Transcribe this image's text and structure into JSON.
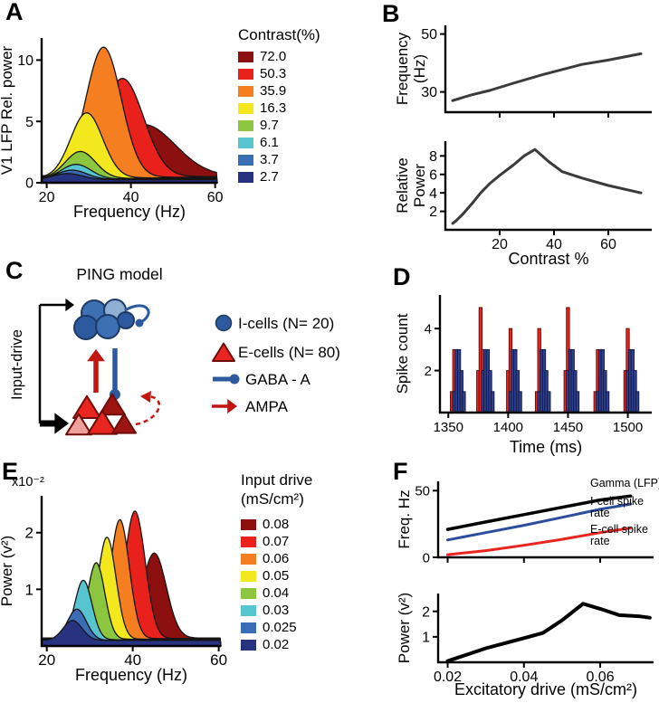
{
  "panels": {
    "A": {
      "label": "A"
    },
    "B": {
      "label": "B"
    },
    "C": {
      "label": "C",
      "title": "PING model",
      "input_label": "Input-drive",
      "colors": {
        "i_cells": "#3d6fb4",
        "i_cells_light": "#8fb0d4",
        "i_cells_dark": "#2d5a9e",
        "i_stroke": "#1d3a66",
        "e_cells": "#e8251f",
        "e_cells_light": "#efa09a",
        "e_cells_dark": "#9e1410",
        "e_stroke": "#6f0c07",
        "ampa_red": "#c2170f",
        "black": "#000000"
      },
      "legend": [
        {
          "symbol": "i-cell-circle",
          "text": "I-cells  (N= 20)"
        },
        {
          "symbol": "e-cell-triangle",
          "text": "E-cells (N= 80)"
        },
        {
          "symbol": "gaba-a-synapse",
          "text": "GABA - A"
        },
        {
          "symbol": "ampa-arrow",
          "text": "AMPA"
        }
      ]
    },
    "D": {
      "label": "D"
    },
    "E": {
      "label": "E"
    },
    "F": {
      "label": "F"
    }
  },
  "chart_data": [
    {
      "id": "A",
      "type": "area",
      "panel": "A",
      "xlabel": "Frequency (Hz)",
      "ylabel": "V1 LFP Rel. power",
      "xlim": [
        18.8,
        60.5
      ],
      "ylim": [
        0,
        11.8
      ],
      "xticks": [
        20,
        40,
        60
      ],
      "yticks": [
        0,
        5,
        10
      ],
      "legend_title": "Contrast(%)",
      "series": [
        {
          "name": "72.0",
          "color": "#8c1010",
          "peak_hz": 43,
          "peak_power": 4.2,
          "width_hz": 7.5,
          "base": 0.55
        },
        {
          "name": "50.3",
          "color": "#e8211d",
          "peak_hz": 38,
          "peak_power": 8.0,
          "width_hz": 5.0,
          "base": 0.5
        },
        {
          "name": "35.9",
          "color": "#f57e20",
          "peak_hz": 33.5,
          "peak_power": 10.6,
          "width_hz": 4.2,
          "base": 0.45
        },
        {
          "name": "16.3",
          "color": "#f3e71d",
          "peak_hz": 29.5,
          "peak_power": 5.3,
          "width_hz": 3.8,
          "base": 0.4
        },
        {
          "name": "9.7",
          "color": "#8cc63f",
          "peak_hz": 28,
          "peak_power": 2.2,
          "width_hz": 3.6,
          "base": 0.35
        },
        {
          "name": "6.1",
          "color": "#56c5d0",
          "peak_hz": 27,
          "peak_power": 1.2,
          "width_hz": 3.5,
          "base": 0.3
        },
        {
          "name": "3.7",
          "color": "#3a6db5",
          "peak_hz": 26,
          "peak_power": 0.75,
          "width_hz": 3.5,
          "base": 0.28
        },
        {
          "name": "2.7",
          "color": "#27337e",
          "peak_hz": 25,
          "peak_power": 0.5,
          "width_hz": 3.5,
          "base": 0.25
        }
      ]
    },
    {
      "id": "B_top",
      "type": "line",
      "panel": "B",
      "ylabel_lines": [
        "Frequency",
        "(Hz)"
      ],
      "xlim": [
        0,
        76
      ],
      "ylim": [
        23,
        53
      ],
      "xticks": [
        20,
        40,
        60
      ],
      "yticks": [
        30,
        50
      ],
      "show_xtick_labels": false,
      "series": [
        {
          "name": "peak gamma frequency",
          "color": "#3b3b3b",
          "width": 3,
          "x": [
            2.7,
            6.1,
            9.7,
            16.3,
            25,
            35.9,
            50.3,
            60,
            72
          ],
          "y": [
            27,
            28,
            29,
            30.5,
            33,
            36,
            39.5,
            41,
            43.2
          ]
        }
      ]
    },
    {
      "id": "B_bottom",
      "type": "line",
      "panel": "B",
      "xlabel": "Contrast %",
      "ylabel_lines": [
        "Relative",
        "Power"
      ],
      "xlim": [
        0,
        76
      ],
      "ylim": [
        0,
        9.6
      ],
      "xticks": [
        20,
        40,
        60
      ],
      "yticks": [
        2,
        4,
        6,
        8
      ],
      "series": [
        {
          "name": "relative power",
          "color": "#3b3b3b",
          "width": 3,
          "x": [
            2.7,
            4,
            6.1,
            9.7,
            13,
            16.3,
            20,
            25,
            29,
            33,
            38,
            43,
            50.3,
            60,
            72
          ],
          "y": [
            0.7,
            1.0,
            1.6,
            2.8,
            4.0,
            5.0,
            5.9,
            7.0,
            8.0,
            8.7,
            7.4,
            6.3,
            5.6,
            4.8,
            4.0
          ]
        }
      ]
    },
    {
      "id": "D",
      "type": "bar",
      "panel": "D",
      "xlabel": "Time (ms)",
      "ylabel": "Spike count",
      "xlim": [
        1343,
        1520
      ],
      "ylim": [
        0,
        5.6
      ],
      "xticks": [
        1350,
        1400,
        1450,
        1500
      ],
      "yticks": [
        2,
        4
      ],
      "bar_width_ms": 2.6,
      "series": [
        {
          "name": "E-cells",
          "color": "#e8251f",
          "edge": "#5a0b08",
          "bars": [
            [
              1353,
              1
            ],
            [
              1355,
              3
            ],
            [
              1357,
              2
            ],
            [
              1375,
              2
            ],
            [
              1377,
              5
            ],
            [
              1379,
              3
            ],
            [
              1381,
              1
            ],
            [
              1400,
              2
            ],
            [
              1402,
              4
            ],
            [
              1404,
              2
            ],
            [
              1424,
              1
            ],
            [
              1426,
              4
            ],
            [
              1428,
              2
            ],
            [
              1448,
              2
            ],
            [
              1450,
              5
            ],
            [
              1452,
              3
            ],
            [
              1454,
              1
            ],
            [
              1473,
              1
            ],
            [
              1475,
              3
            ],
            [
              1477,
              2
            ],
            [
              1498,
              2
            ],
            [
              1500,
              4
            ],
            [
              1502,
              2
            ]
          ]
        },
        {
          "name": "I-cells",
          "color": "#2d3f8f",
          "edge": "#10173d",
          "bars": [
            [
              1355,
              1
            ],
            [
              1357,
              3
            ],
            [
              1359,
              3
            ],
            [
              1361,
              2
            ],
            [
              1363,
              1
            ],
            [
              1379,
              2
            ],
            [
              1381,
              3
            ],
            [
              1383,
              3
            ],
            [
              1385,
              2
            ],
            [
              1387,
              1
            ],
            [
              1402,
              1
            ],
            [
              1404,
              3
            ],
            [
              1406,
              3
            ],
            [
              1408,
              2
            ],
            [
              1410,
              1
            ],
            [
              1426,
              1
            ],
            [
              1428,
              3
            ],
            [
              1430,
              3
            ],
            [
              1432,
              2
            ],
            [
              1434,
              1
            ],
            [
              1450,
              2
            ],
            [
              1452,
              3
            ],
            [
              1454,
              3
            ],
            [
              1456,
              2
            ],
            [
              1458,
              1
            ],
            [
              1475,
              1
            ],
            [
              1477,
              3
            ],
            [
              1479,
              3
            ],
            [
              1481,
              2
            ],
            [
              1483,
              1
            ],
            [
              1500,
              2
            ],
            [
              1502,
              3
            ],
            [
              1504,
              3
            ],
            [
              1506,
              2
            ],
            [
              1508,
              1
            ]
          ]
        }
      ]
    },
    {
      "id": "E",
      "type": "area",
      "panel": "E",
      "xlabel": "Frequency (Hz)",
      "ylabel": "Power (v²)",
      "scale_label": "x10⁻²",
      "xlim": [
        18.8,
        60.5
      ],
      "ylim": [
        0,
        2.65
      ],
      "xticks": [
        20,
        40,
        60
      ],
      "yticks": [
        1,
        2
      ],
      "legend_title_lines": [
        "Input drive",
        "(mS/cm²)"
      ],
      "series": [
        {
          "name": "0.08",
          "color": "#8c1010",
          "peak_hz": 45,
          "peak_power": 1.5,
          "width_hz": 2.8,
          "base": 0.14
        },
        {
          "name": "0.07",
          "color": "#e8211d",
          "peak_hz": 40.5,
          "peak_power": 2.25,
          "width_hz": 2.4,
          "base": 0.13
        },
        {
          "name": "0.06",
          "color": "#f57e20",
          "peak_hz": 37,
          "peak_power": 2.1,
          "width_hz": 2.2,
          "base": 0.13
        },
        {
          "name": "0.05",
          "color": "#f3e71d",
          "peak_hz": 34,
          "peak_power": 1.8,
          "width_hz": 2.1,
          "base": 0.12
        },
        {
          "name": "0.04",
          "color": "#8cc63f",
          "peak_hz": 31.5,
          "peak_power": 1.35,
          "width_hz": 2.0,
          "base": 0.12
        },
        {
          "name": "0.03",
          "color": "#56c5d0",
          "peak_hz": 28.5,
          "peak_power": 1.05,
          "width_hz": 2.0,
          "base": 0.11
        },
        {
          "name": "0.025",
          "color": "#3a6db5",
          "peak_hz": 27,
          "peak_power": 0.55,
          "width_hz": 2.2,
          "base": 0.1
        },
        {
          "name": "0.02",
          "color": "#27337e",
          "peak_hz": 26,
          "peak_power": 0.35,
          "width_hz": 2.2,
          "base": 0.1
        }
      ]
    },
    {
      "id": "F_top",
      "type": "line",
      "panel": "F",
      "ylabel_lines": [
        "Freq. Hz"
      ],
      "xlim": [
        0.0175,
        0.074
      ],
      "ylim": [
        0,
        57
      ],
      "xticks": [
        0.02,
        0.04,
        0.06
      ],
      "yticks": [
        0,
        50
      ],
      "show_xtick_labels": false,
      "series": [
        {
          "name": "Gamma (LFP)",
          "color": "#000000",
          "width": 3.5,
          "x": [
            0.02,
            0.03,
            0.04,
            0.05,
            0.06,
            0.068
          ],
          "y": [
            21,
            26.5,
            32,
            37.5,
            43,
            46
          ]
        },
        {
          "name": "I-cell spike rate",
          "color": "#2d4d9e",
          "width": 3,
          "x": [
            0.02,
            0.03,
            0.04,
            0.05,
            0.06,
            0.068
          ],
          "y": [
            13,
            18.5,
            24,
            30,
            36,
            40
          ]
        },
        {
          "name": "E-cell spike rate",
          "color": "#e8251f",
          "width": 3,
          "x": [
            0.02,
            0.03,
            0.04,
            0.05,
            0.06,
            0.068
          ],
          "y": [
            2,
            5,
            9,
            13.5,
            18.5,
            22
          ]
        }
      ],
      "annotations": [
        {
          "lines": [
            "Gamma (LFP)"
          ],
          "color": "#000000"
        },
        {
          "lines": [
            "I-cell spike",
            "rate"
          ],
          "color": "#2d4d9e"
        },
        {
          "lines": [
            "E-cell spike",
            "rate"
          ],
          "color": "#e8251f"
        }
      ]
    },
    {
      "id": "F_bottom",
      "type": "line",
      "panel": "F",
      "xlabel": "Excitatory drive (mS/cm²)",
      "ylabel_lines": [
        "Power (v²)"
      ],
      "xlim": [
        0.0175,
        0.074
      ],
      "ylim": [
        0,
        2.7
      ],
      "xticks": [
        0.02,
        0.04,
        0.06
      ],
      "yticks": [
        1,
        2
      ],
      "series": [
        {
          "name": "LFP power",
          "color": "#000000",
          "width": 4,
          "x": [
            0.02,
            0.025,
            0.03,
            0.035,
            0.04,
            0.045,
            0.05,
            0.0555,
            0.06,
            0.065,
            0.0705,
            0.073
          ],
          "y": [
            0.05,
            0.3,
            0.55,
            0.75,
            0.95,
            1.15,
            1.65,
            2.3,
            2.1,
            1.85,
            1.8,
            1.75
          ]
        }
      ]
    }
  ]
}
